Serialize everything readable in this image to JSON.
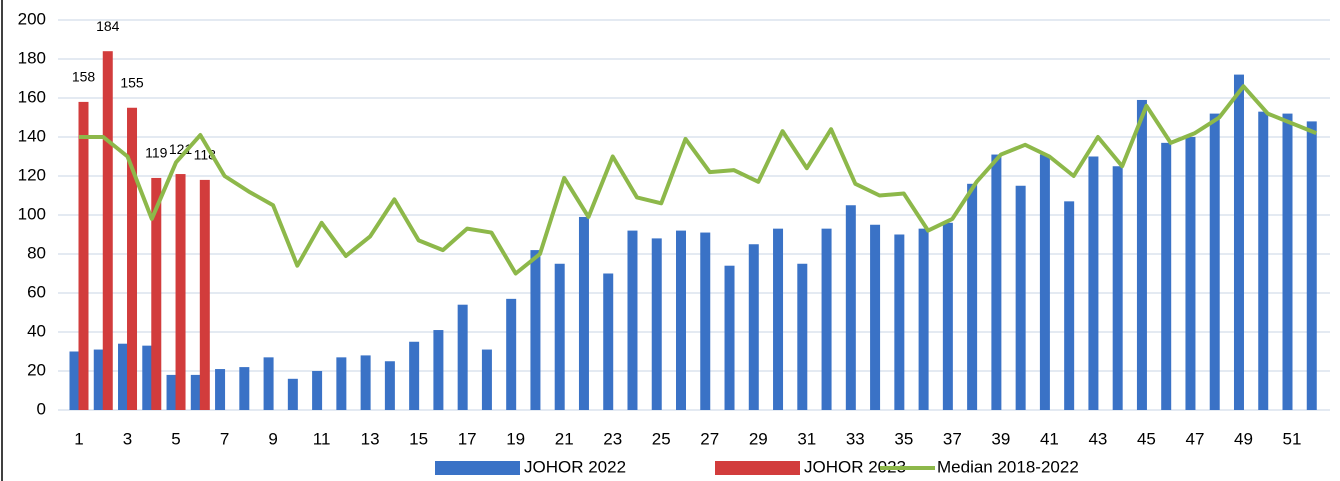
{
  "chart_data": {
    "type": "bar-line",
    "categories": [
      1,
      null,
      3,
      null,
      5,
      null,
      7,
      null,
      9,
      null,
      11,
      null,
      13,
      null,
      15,
      null,
      17,
      null,
      19,
      null,
      21,
      null,
      23,
      null,
      25,
      null,
      27,
      null,
      29,
      null,
      31,
      null,
      33,
      null,
      35,
      null,
      37,
      null,
      39,
      null,
      41,
      null,
      43,
      null,
      45,
      null,
      47,
      null,
      49,
      null,
      51,
      null
    ],
    "series": [
      {
        "name": "JOHOR 2022",
        "type": "bar",
        "color": "#3a72c6",
        "values": [
          30,
          31,
          34,
          33,
          18,
          18,
          21,
          22,
          27,
          16,
          20,
          27,
          28,
          25,
          35,
          41,
          54,
          31,
          57,
          82,
          75,
          99,
          70,
          92,
          88,
          92,
          91,
          74,
          85,
          93,
          75,
          93,
          105,
          95,
          90,
          93,
          96,
          116,
          131,
          115,
          131,
          107,
          130,
          125,
          159,
          137,
          140,
          152,
          172,
          153,
          152,
          148
        ]
      },
      {
        "name": "JOHOR 2023",
        "type": "bar",
        "color": "#d23c3c",
        "data_labels": true,
        "values": [
          158,
          184,
          155,
          119,
          121,
          118,
          null,
          null,
          null,
          null,
          null,
          null,
          null,
          null,
          null,
          null,
          null,
          null,
          null,
          null,
          null,
          null,
          null,
          null,
          null,
          null,
          null,
          null,
          null,
          null,
          null,
          null,
          null,
          null,
          null,
          null,
          null,
          null,
          null,
          null,
          null,
          null,
          null,
          null,
          null,
          null,
          null,
          null,
          null,
          null,
          null,
          null
        ]
      },
      {
        "name": "Median 2018-2022",
        "type": "line",
        "color": "#8db84a",
        "values": [
          140,
          140,
          130,
          98,
          127,
          141,
          120,
          112,
          105,
          74,
          96,
          79,
          89,
          108,
          87,
          82,
          93,
          91,
          70,
          80,
          119,
          99,
          130,
          109,
          106,
          139,
          122,
          123,
          117,
          143,
          124,
          144,
          116,
          110,
          111,
          92,
          98,
          117,
          131,
          136,
          130,
          120,
          140,
          125,
          156,
          137,
          142,
          150,
          166,
          152,
          147,
          142
        ]
      }
    ],
    "ylim": [
      0,
      200
    ],
    "yticks": [
      0,
      20,
      40,
      60,
      80,
      100,
      120,
      140,
      160,
      180,
      200
    ],
    "grid": true,
    "legend": "bottom"
  }
}
